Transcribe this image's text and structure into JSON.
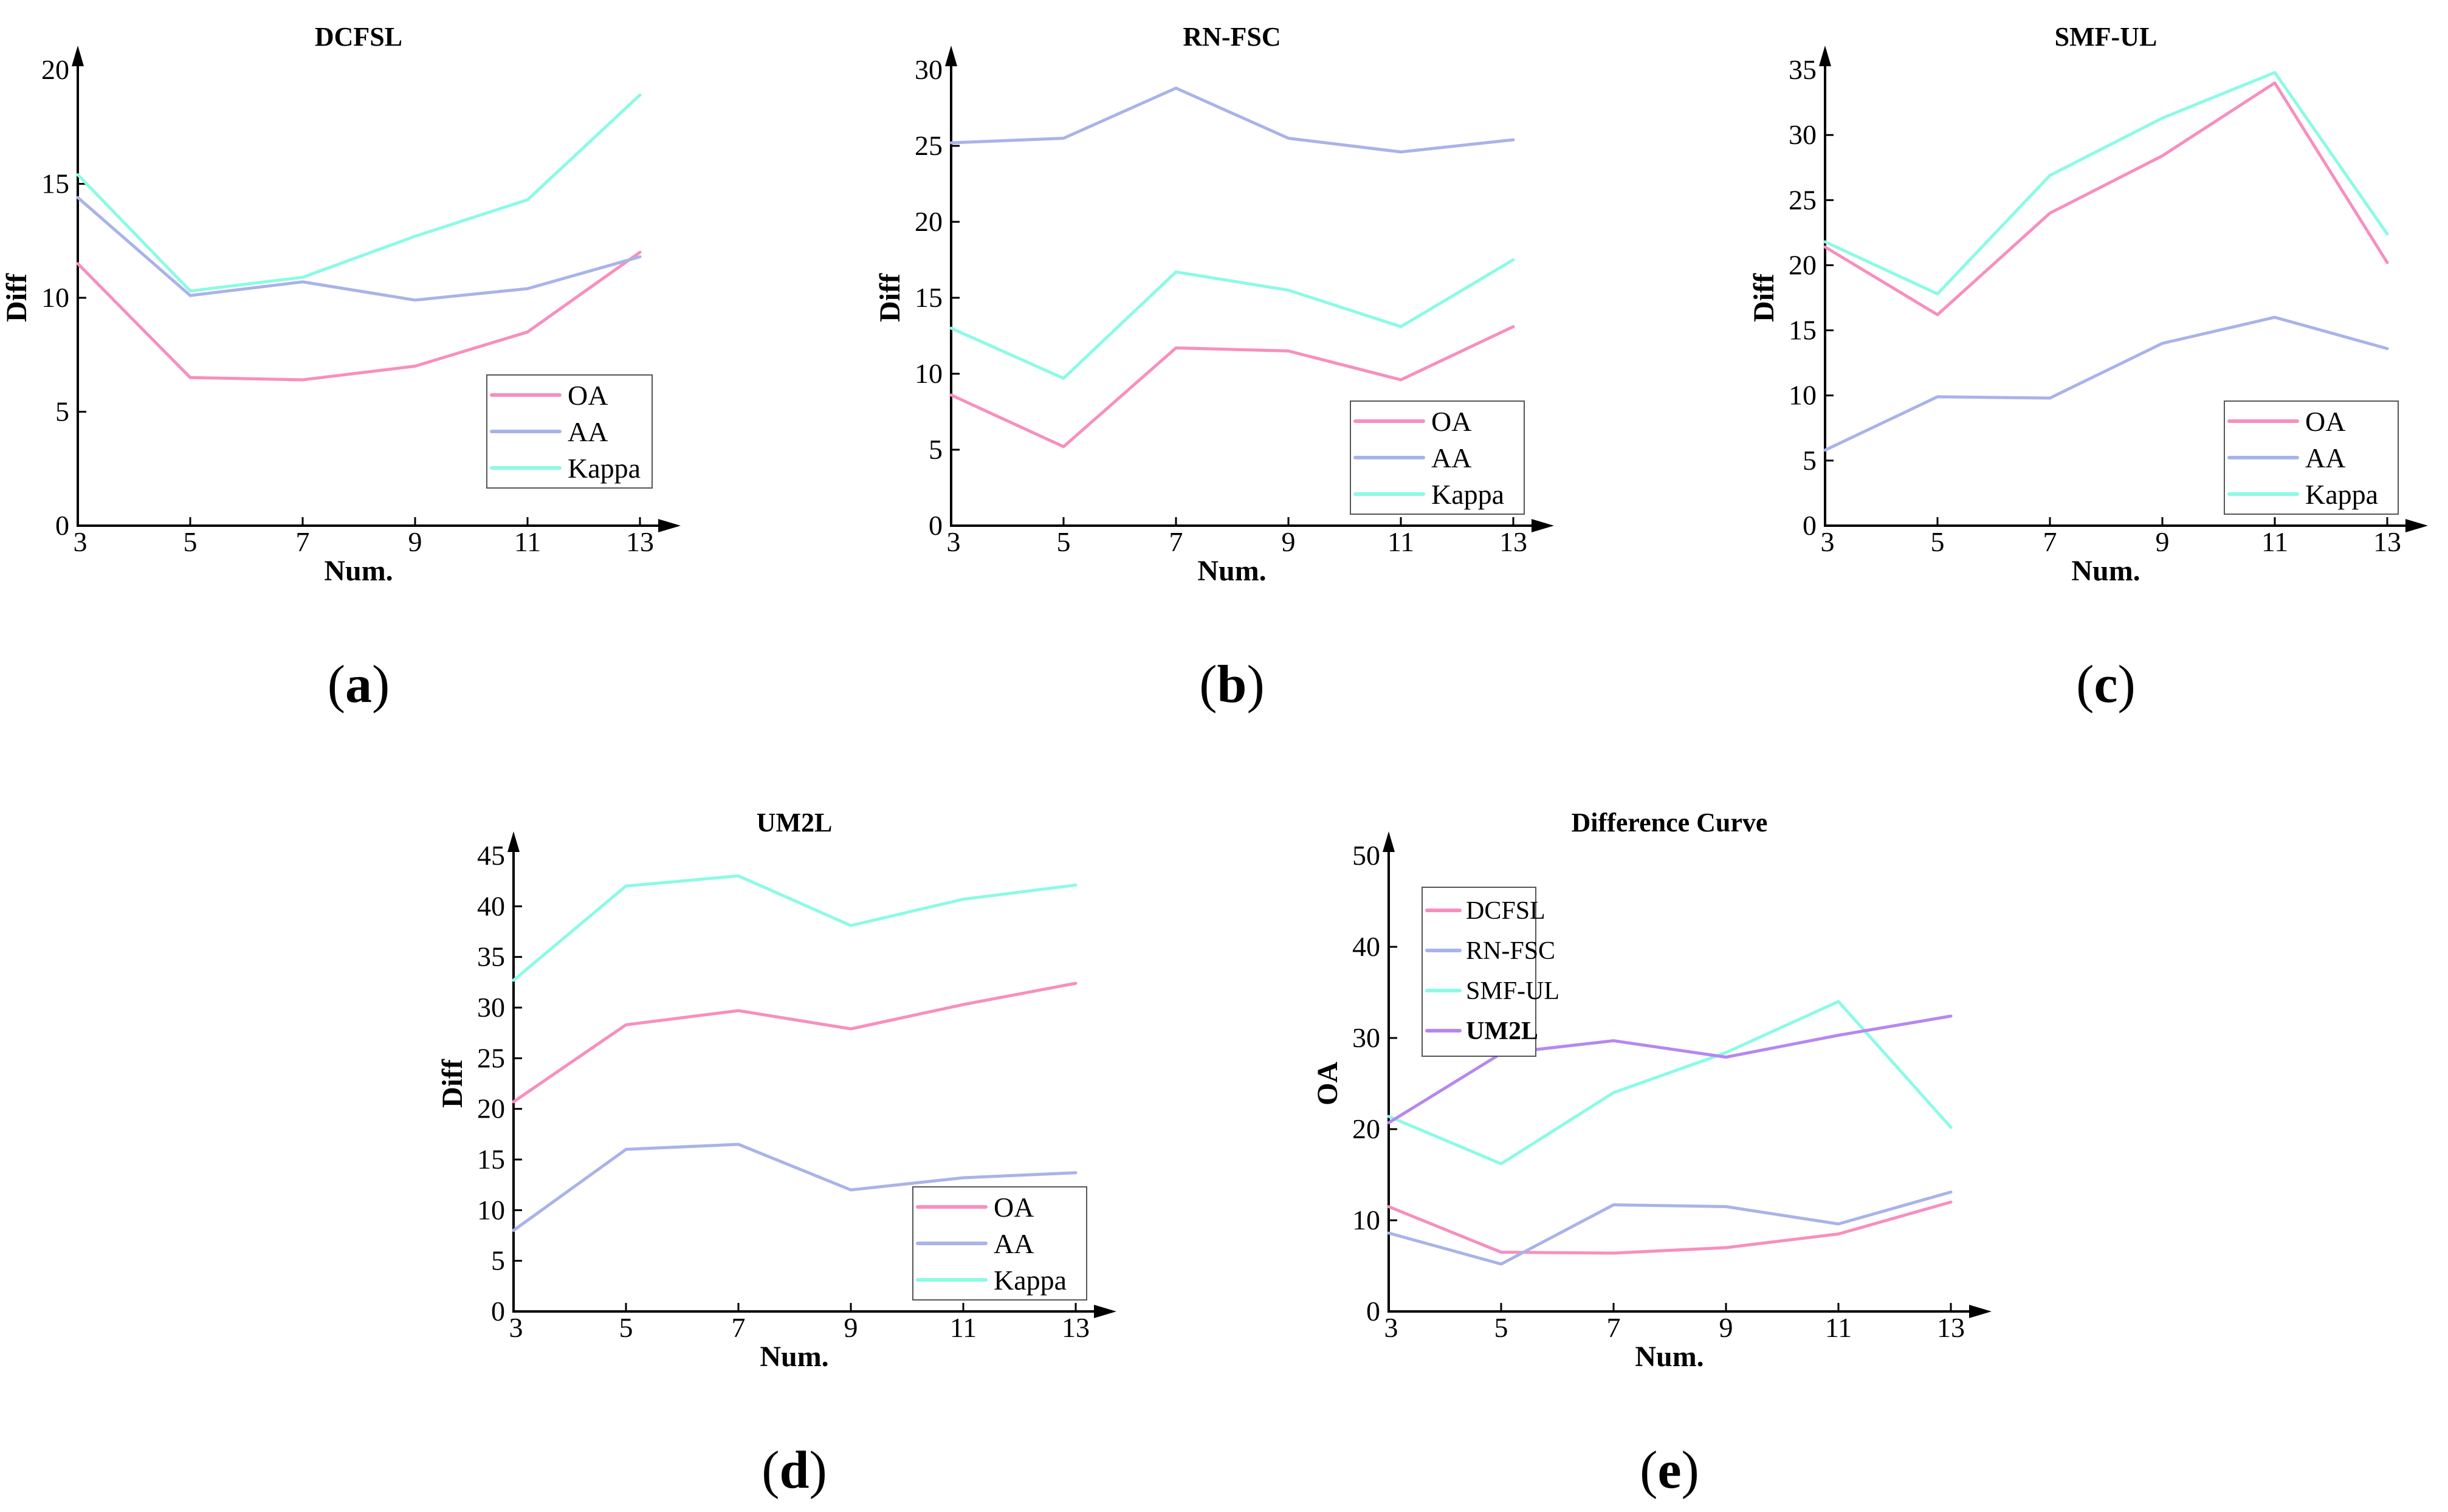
{
  "figure": {
    "background": "#ffffff",
    "axis_color": "#000000",
    "text_color": "#000000",
    "legend_border_color": "#555555"
  },
  "chart_data": [
    {
      "id": "dcfsl",
      "type": "line",
      "title": "DCFSL",
      "xlabel": "Num.",
      "ylabel": "Diff",
      "caption": {
        "open": "(",
        "letter": "a",
        "close": ")"
      },
      "x": [
        3,
        5,
        7,
        9,
        11,
        13
      ],
      "xticks": [
        3,
        5,
        7,
        9,
        11,
        13
      ],
      "xlim": [
        3,
        13
      ],
      "ylim": [
        0,
        20
      ],
      "yticks": [
        0,
        5,
        10,
        15,
        20
      ],
      "grid": false,
      "legend_position": "lower-right",
      "series": [
        {
          "name": "OA",
          "color": "#F78FBE",
          "values": [
            11.5,
            6.5,
            6.4,
            7.0,
            8.5,
            12.0
          ]
        },
        {
          "name": "AA",
          "color": "#A9B3E9",
          "values": [
            14.4,
            10.1,
            10.7,
            9.9,
            10.4,
            11.8
          ]
        },
        {
          "name": "Kappa",
          "color": "#8BFAE6",
          "values": [
            15.4,
            10.3,
            10.9,
            12.7,
            14.3,
            18.9
          ]
        }
      ]
    },
    {
      "id": "rnfsc",
      "type": "line",
      "title": "RN-FSC",
      "xlabel": "Num.",
      "ylabel": "Diff",
      "caption": {
        "open": "(",
        "letter": "b",
        "close": ")"
      },
      "x": [
        3,
        5,
        7,
        9,
        11,
        13
      ],
      "xticks": [
        3,
        5,
        7,
        9,
        11,
        13
      ],
      "xlim": [
        3,
        13
      ],
      "ylim": [
        0,
        30
      ],
      "yticks": [
        0,
        5,
        10,
        15,
        20,
        25,
        30
      ],
      "grid": false,
      "legend_position": "lower-right",
      "series": [
        {
          "name": "OA",
          "color": "#F78FBE",
          "values": [
            8.6,
            5.2,
            11.7,
            11.5,
            9.6,
            13.1
          ]
        },
        {
          "name": "AA",
          "color": "#A9B3E9",
          "values": [
            25.2,
            25.5,
            28.8,
            25.5,
            24.6,
            25.4
          ]
        },
        {
          "name": "Kappa",
          "color": "#8BFAE6",
          "values": [
            13.0,
            9.7,
            16.7,
            15.5,
            13.1,
            17.5
          ]
        }
      ]
    },
    {
      "id": "smful",
      "type": "line",
      "title": "SMF-UL",
      "xlabel": "Num.",
      "ylabel": "Diff",
      "caption": {
        "open": "(",
        "letter": "c",
        "close": ")"
      },
      "x": [
        3,
        5,
        7,
        9,
        11,
        13
      ],
      "xticks": [
        3,
        5,
        7,
        9,
        11,
        13
      ],
      "xlim": [
        3,
        13
      ],
      "ylim": [
        0,
        35
      ],
      "yticks": [
        0,
        5,
        10,
        15,
        20,
        25,
        30,
        35
      ],
      "grid": false,
      "legend_position": "lower-right",
      "series": [
        {
          "name": "OA",
          "color": "#F78FBE",
          "values": [
            21.4,
            16.2,
            24.0,
            28.4,
            34.0,
            20.2
          ]
        },
        {
          "name": "AA",
          "color": "#A9B3E9",
          "values": [
            5.8,
            9.9,
            9.8,
            14.0,
            16.0,
            13.6
          ]
        },
        {
          "name": "Kappa",
          "color": "#8BFAE6",
          "values": [
            21.8,
            17.8,
            26.9,
            31.3,
            34.8,
            22.4
          ]
        }
      ]
    },
    {
      "id": "um2l",
      "type": "line",
      "title": "UM2L",
      "xlabel": "Num.",
      "ylabel": "Diff",
      "caption": {
        "open": "(",
        "letter": "d",
        "close": ")"
      },
      "x": [
        3,
        5,
        7,
        9,
        11,
        13
      ],
      "xticks": [
        3,
        5,
        7,
        9,
        11,
        13
      ],
      "xlim": [
        3,
        13
      ],
      "ylim": [
        0,
        45
      ],
      "yticks": [
        0,
        5,
        10,
        15,
        20,
        25,
        30,
        35,
        40,
        45
      ],
      "grid": false,
      "legend_position": "lower-right",
      "series": [
        {
          "name": "OA",
          "color": "#F78FBE",
          "values": [
            20.7,
            28.3,
            29.7,
            27.9,
            30.3,
            32.4
          ]
        },
        {
          "name": "AA",
          "color": "#A9B3E9",
          "values": [
            8.0,
            16.0,
            16.5,
            12.0,
            13.2,
            13.7
          ]
        },
        {
          "name": "Kappa",
          "color": "#8BFAE6",
          "values": [
            32.7,
            42.0,
            43.0,
            38.1,
            40.7,
            42.1
          ]
        }
      ]
    },
    {
      "id": "diff",
      "type": "line",
      "title": "Difference Curve",
      "xlabel": "Num.",
      "ylabel": "OA",
      "caption": {
        "open": "(",
        "letter": "e",
        "close": ")"
      },
      "x": [
        3,
        5,
        7,
        9,
        11,
        13
      ],
      "xticks": [
        3,
        5,
        7,
        9,
        11,
        13
      ],
      "xlim": [
        3,
        13
      ],
      "ylim": [
        0,
        50
      ],
      "yticks": [
        0,
        10,
        20,
        30,
        40,
        50
      ],
      "grid": false,
      "legend_position": "upper-left",
      "series": [
        {
          "name": "DCFSL",
          "color": "#F78FBE",
          "values": [
            11.5,
            6.5,
            6.4,
            7.0,
            8.5,
            12.0
          ]
        },
        {
          "name": "RN-FSC",
          "color": "#A9B3E9",
          "values": [
            8.6,
            5.2,
            11.7,
            11.5,
            9.6,
            13.1
          ]
        },
        {
          "name": "SMF-UL",
          "color": "#8BFAE6",
          "values": [
            21.4,
            16.2,
            24.0,
            28.4,
            34.0,
            20.2
          ]
        },
        {
          "name": "UM2L",
          "color": "#B687EF",
          "values": [
            20.7,
            28.3,
            29.7,
            27.9,
            30.3,
            32.4
          ]
        }
      ]
    }
  ]
}
